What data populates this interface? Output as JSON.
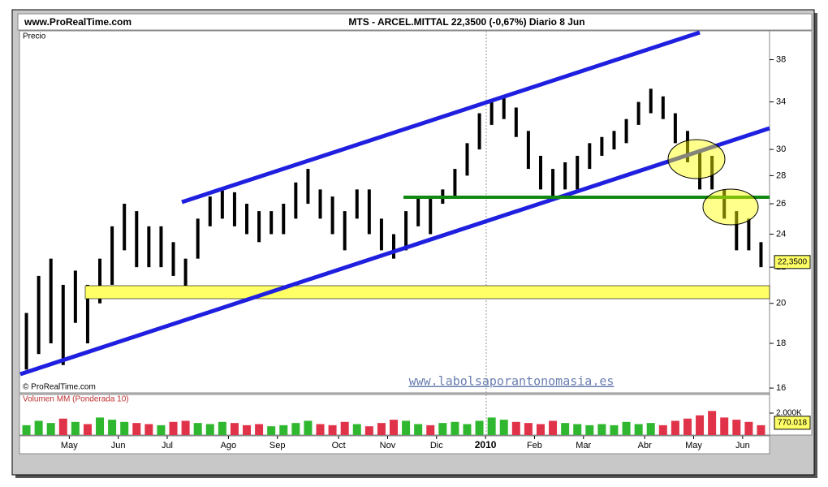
{
  "header": {
    "site": "www.ProRealTime.com"
  },
  "chart_data": {
    "type": "hilo",
    "title": "MTS - ARCEL.MITTAL   22,3500 (-0,67%)   Diario  8 Jun",
    "price_label": "Precio",
    "copyright": "© ProRealTime.com",
    "watermark": "www.labolsaporantonomasia.es",
    "last_value_label": "22,3500",
    "color": "#000000",
    "log_scale": true,
    "categories": [
      null,
      null,
      null,
      null,
      "May",
      null,
      null,
      null,
      "Jun",
      null,
      null,
      null,
      "Jul",
      null,
      null,
      null,
      null,
      "Ago",
      null,
      null,
      null,
      "Sep",
      null,
      null,
      null,
      null,
      "Oct",
      null,
      null,
      null,
      "Nov",
      null,
      null,
      null,
      "Dic",
      null,
      null,
      null,
      "2010",
      null,
      null,
      null,
      "Feb",
      null,
      null,
      null,
      "Mar",
      null,
      null,
      null,
      null,
      "Abr",
      null,
      null,
      null,
      "May",
      null,
      null,
      null,
      "Jun",
      null
    ],
    "high": [
      19.5,
      21.5,
      22.5,
      21,
      21.8,
      21,
      22.5,
      24.5,
      26,
      25.5,
      24.5,
      24.5,
      23.5,
      22.5,
      25,
      26.5,
      27,
      26.8,
      26,
      25.5,
      25.5,
      26,
      27.5,
      28.5,
      27,
      26.5,
      25.5,
      27,
      27,
      25,
      24,
      25.5,
      26.5,
      26.5,
      27,
      28.5,
      30.5,
      33,
      34,
      34.5,
      33.5,
      31.5,
      29.5,
      28.5,
      29,
      29.5,
      30.5,
      31,
      31.5,
      32.5,
      34,
      35.2,
      34.5,
      33,
      31.5,
      30,
      29.5,
      27,
      25.5,
      25,
      23.5
    ],
    "low": [
      16.8,
      17.5,
      18,
      17,
      19,
      18,
      20,
      21,
      23,
      22,
      22,
      22,
      21.5,
      20.5,
      22.5,
      24.5,
      25,
      24.5,
      24,
      23.5,
      24,
      24,
      25,
      26,
      25,
      24,
      23,
      25,
      24,
      23,
      22.5,
      23,
      24.5,
      24,
      26,
      26.5,
      28,
      30,
      32,
      32.5,
      31,
      28.5,
      27,
      26.5,
      27,
      27,
      28.5,
      29.5,
      30,
      30.5,
      32,
      33,
      32.5,
      30.5,
      29,
      27,
      27,
      25,
      23,
      23,
      22
    ],
    "ylim": [
      15.8,
      41
    ],
    "yticks": [
      16,
      18,
      20,
      22,
      24,
      26,
      28,
      30,
      34,
      38
    ],
    "volume": {
      "label": "Volumen MM (Ponderada 10)",
      "last_value_label": "770.018",
      "up_color": "#2fb82f",
      "down_color": "#e0334a",
      "values": [
        900,
        1300,
        1100,
        1500,
        1200,
        1000,
        1600,
        1400,
        1200,
        1100,
        1000,
        900,
        1200,
        1300,
        1100,
        1000,
        1200,
        1100,
        900,
        1000,
        800,
        900,
        1100,
        1300,
        1000,
        900,
        1200,
        1000,
        800,
        1100,
        1400,
        1300,
        1000,
        900,
        1100,
        1200,
        1000,
        1300,
        1600,
        1400,
        1200,
        1100,
        1000,
        1300,
        1100,
        1000,
        900,
        1000,
        900,
        1200,
        1000,
        1100,
        900,
        1300,
        1500,
        1800,
        2200,
        1600,
        1400,
        1200,
        900
      ],
      "ylim": [
        0,
        3630
      ],
      "yticks": [
        {
          "value": 2000,
          "label": "2.000K"
        }
      ]
    }
  }
}
